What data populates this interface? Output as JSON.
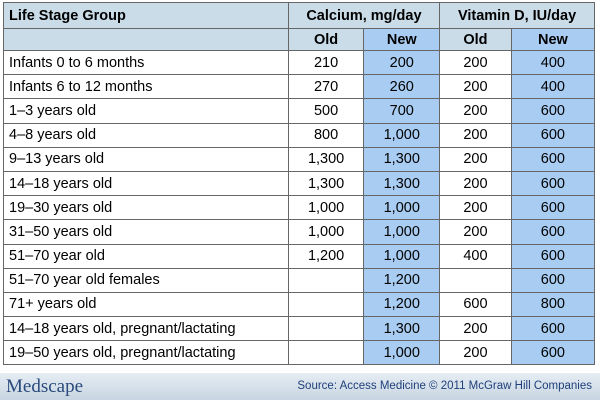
{
  "table": {
    "header": [
      "Life Stage Group",
      "Calcium, mg/day",
      "Vitamin D, IU/day"
    ],
    "subheader": [
      "Old",
      "New",
      "Old",
      "New"
    ],
    "rows": [
      [
        "Infants 0 to 6 months",
        "210",
        "200",
        "200",
        "400"
      ],
      [
        "Infants 6 to 12 months",
        "270",
        "260",
        "200",
        "400"
      ],
      [
        "1–3 years old",
        "500",
        "700",
        "200",
        "600"
      ],
      [
        "4–8 years old",
        "800",
        "1,000",
        "200",
        "600"
      ],
      [
        "9–13 years old",
        "1,300",
        "1,300",
        "200",
        "600"
      ],
      [
        "14–18 years old",
        "1,300",
        "1,300",
        "200",
        "600"
      ],
      [
        "19–30 years old",
        "1,000",
        "1,000",
        "200",
        "600"
      ],
      [
        "31–50 years old",
        "1,000",
        "1,000",
        "200",
        "600"
      ],
      [
        "51–70 year old",
        "1,200",
        "1,000",
        "400",
        "600"
      ],
      [
        "51–70 year old females",
        null,
        "1,200",
        null,
        "600"
      ],
      [
        "71+ years old",
        null,
        "1,200",
        "600",
        "800"
      ],
      [
        "14–18 years old, pregnant/lactating",
        null,
        "1,300",
        "200",
        "600"
      ],
      [
        "19–50 years old, pregnant/lactating",
        null,
        "1,000",
        "200",
        "600"
      ]
    ]
  },
  "footer": {
    "logo": "Medscape",
    "source": "Source: Access Medicine © 2011 McGraw Hill Companies"
  }
}
